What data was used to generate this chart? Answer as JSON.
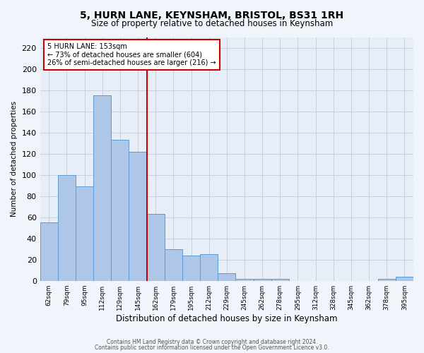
{
  "title": "5, HURN LANE, KEYNSHAM, BRISTOL, BS31 1RH",
  "subtitle": "Size of property relative to detached houses in Keynsham",
  "xlabel": "Distribution of detached houses by size in Keynsham",
  "ylabel": "Number of detached properties",
  "bar_labels": [
    "62sqm",
    "79sqm",
    "95sqm",
    "112sqm",
    "129sqm",
    "145sqm",
    "162sqm",
    "179sqm",
    "195sqm",
    "212sqm",
    "229sqm",
    "245sqm",
    "262sqm",
    "278sqm",
    "295sqm",
    "312sqm",
    "328sqm",
    "345sqm",
    "362sqm",
    "378sqm",
    "395sqm"
  ],
  "bar_values": [
    55,
    100,
    89,
    175,
    133,
    122,
    63,
    30,
    24,
    25,
    7,
    2,
    2,
    2,
    0,
    0,
    0,
    0,
    0,
    2,
    4
  ],
  "bar_color": "#aec6e8",
  "bar_edge_color": "#5b9bd5",
  "vline_color": "#cc0000",
  "annotation_box_color": "#cc0000",
  "ylim": [
    0,
    230
  ],
  "yticks": [
    0,
    20,
    40,
    60,
    80,
    100,
    120,
    140,
    160,
    180,
    200,
    220
  ],
  "grid_color": "#c8d0dc",
  "bg_color": "#e8eef7",
  "fig_bg_color": "#f0f4fb",
  "footer1": "Contains HM Land Registry data © Crown copyright and database right 2024.",
  "footer2": "Contains public sector information licensed under the Open Government Licence v3.0."
}
